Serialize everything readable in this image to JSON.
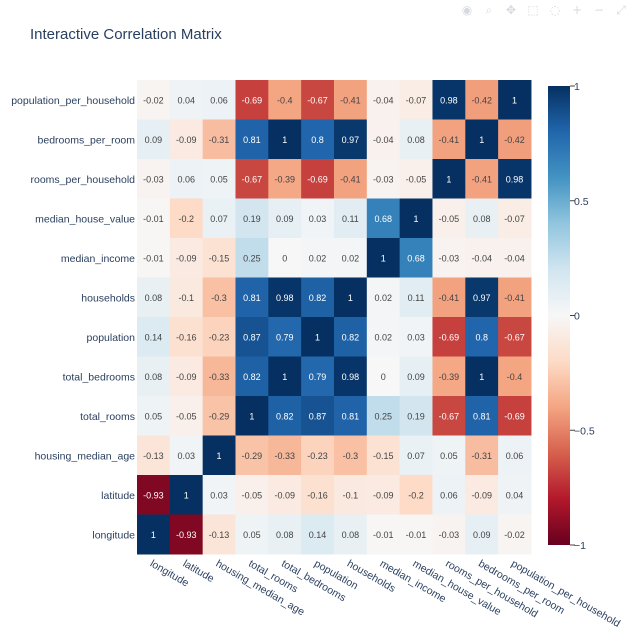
{
  "chart_data": {
    "type": "heatmap",
    "title": "Interactive Correlation Matrix",
    "x_labels": [
      "longitude",
      "latitude",
      "housing_median_age",
      "total_rooms",
      "total_bedrooms",
      "population",
      "households",
      "median_income",
      "median_house_value",
      "rooms_per_household",
      "bedrooms_per_room",
      "population_per_household"
    ],
    "y_labels_top_to_bottom": [
      "population_per_household",
      "bedrooms_per_room",
      "rooms_per_household",
      "median_house_value",
      "median_income",
      "households",
      "population",
      "total_bedrooms",
      "total_rooms",
      "housing_median_age",
      "latitude",
      "longitude"
    ],
    "values": [
      [
        -0.02,
        0.04,
        0.06,
        -0.69,
        -0.4,
        -0.67,
        -0.41,
        -0.04,
        -0.07,
        0.98,
        -0.42,
        1
      ],
      [
        0.09,
        -0.09,
        -0.31,
        0.81,
        1,
        0.8,
        0.97,
        -0.04,
        0.08,
        -0.41,
        1,
        -0.42
      ],
      [
        -0.03,
        0.06,
        0.05,
        -0.67,
        -0.39,
        -0.69,
        -0.41,
        -0.03,
        -0.05,
        1,
        -0.41,
        0.98
      ],
      [
        -0.01,
        -0.2,
        0.07,
        0.19,
        0.09,
        0.03,
        0.11,
        0.68,
        1,
        -0.05,
        0.08,
        -0.07
      ],
      [
        -0.01,
        -0.09,
        -0.15,
        0.25,
        0,
        0.02,
        0.02,
        1,
        0.68,
        -0.03,
        -0.04,
        -0.04
      ],
      [
        0.08,
        -0.1,
        -0.3,
        0.81,
        0.98,
        0.82,
        1,
        0.02,
        0.11,
        -0.41,
        0.97,
        -0.41
      ],
      [
        0.14,
        -0.16,
        -0.23,
        0.87,
        0.79,
        1,
        0.82,
        0.02,
        0.03,
        -0.69,
        0.8,
        -0.67
      ],
      [
        0.08,
        -0.09,
        -0.33,
        0.82,
        1,
        0.79,
        0.98,
        0,
        0.09,
        -0.39,
        1,
        -0.4
      ],
      [
        0.05,
        -0.05,
        -0.29,
        1,
        0.82,
        0.87,
        0.81,
        0.25,
        0.19,
        -0.67,
        0.81,
        -0.69
      ],
      [
        -0.13,
        0.03,
        1,
        -0.29,
        -0.33,
        -0.23,
        -0.3,
        -0.15,
        0.07,
        0.05,
        -0.31,
        0.06
      ],
      [
        -0.93,
        1,
        0.03,
        -0.05,
        -0.09,
        -0.16,
        -0.1,
        -0.09,
        -0.2,
        0.06,
        -0.09,
        0.04
      ],
      [
        1,
        -0.93,
        -0.13,
        0.05,
        0.08,
        0.14,
        0.08,
        -0.01,
        -0.01,
        -0.03,
        0.09,
        -0.02
      ]
    ],
    "zmin": -1,
    "zmax": 1,
    "colorscale": [
      [
        0.0,
        "#67001f"
      ],
      [
        0.1,
        "#b2182b"
      ],
      [
        0.2,
        "#d6604d"
      ],
      [
        0.3,
        "#f4a582"
      ],
      [
        0.4,
        "#fddbc7"
      ],
      [
        0.5,
        "#f7f7f7"
      ],
      [
        0.6,
        "#d1e5f0"
      ],
      [
        0.7,
        "#92c5de"
      ],
      [
        0.8,
        "#4393c3"
      ],
      [
        0.9,
        "#2166ac"
      ],
      [
        1.0,
        "#053061"
      ]
    ],
    "colorbar_ticks": [
      {
        "value": 1,
        "label": "1"
      },
      {
        "value": 0.5,
        "label": "0.5"
      },
      {
        "value": 0,
        "label": "0"
      },
      {
        "value": -0.5,
        "label": "−0.5"
      },
      {
        "value": -1,
        "label": "−1"
      }
    ]
  },
  "modebar": {
    "icons": [
      "camera-icon",
      "zoom-icon",
      "pan-icon",
      "select-box-icon",
      "lasso-icon",
      "zoom-in-icon",
      "zoom-out-icon",
      "autoscale-icon"
    ]
  }
}
